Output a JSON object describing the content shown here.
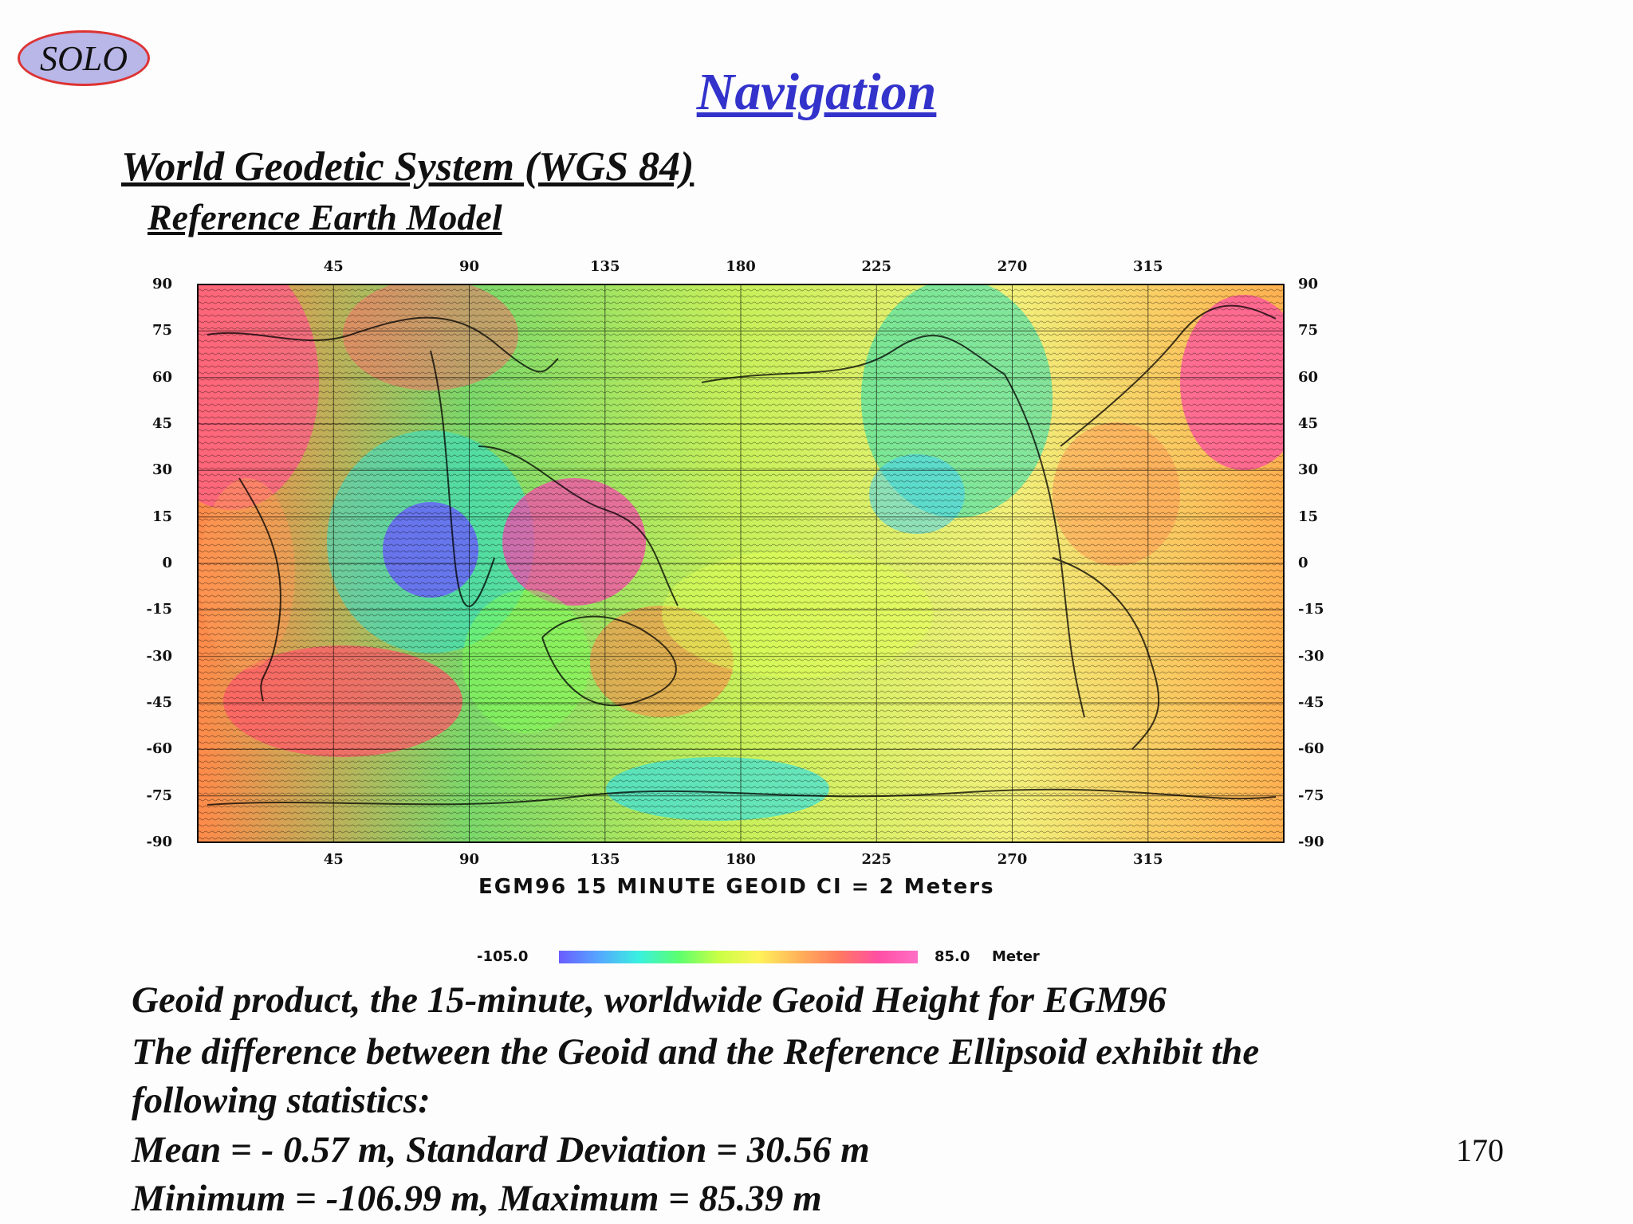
{
  "badge": "SOLO",
  "title": "Navigation",
  "subtitle": "World Geodetic System (WGS 84)",
  "subsubtitle": "Reference Earth Model",
  "map": {
    "top_ticks": [
      "45",
      "90",
      "135",
      "180",
      "225",
      "270",
      "315"
    ],
    "bottom_ticks": [
      "45",
      "90",
      "135",
      "180",
      "225",
      "270",
      "315"
    ],
    "left_ticks": [
      "90",
      "75",
      "60",
      "45",
      "30",
      "15",
      "0",
      "-15",
      "-30",
      "-45",
      "-60",
      "-75",
      "-90"
    ],
    "right_ticks": [
      "90",
      "75",
      "60",
      "45",
      "30",
      "15",
      "0",
      "-15",
      "-30",
      "-45",
      "-60",
      "-75",
      "-90"
    ],
    "caption": "EGM96 15 MINUTE GEOID CI = 2 Meters",
    "legend": {
      "min": "-105.0",
      "max": "85.0",
      "unit": "Meter"
    },
    "colors": {
      "low": "#6a5cff",
      "mid": "#d8ff4a",
      "high": "#ff4fa3"
    }
  },
  "body": {
    "line1": "Geoid product, the 15-minute, worldwide Geoid Height  for EGM96",
    "line2": "The difference between the Geoid and the Reference Ellipsoid exhibit the",
    "line3": "following statistics:",
    "line4": " Mean = - 0.57 m, Standard Deviation = 30.56 m",
    "line5": "Minimum = -106.99 m,  Maximum = 85.39 m"
  },
  "page_number": "170"
}
